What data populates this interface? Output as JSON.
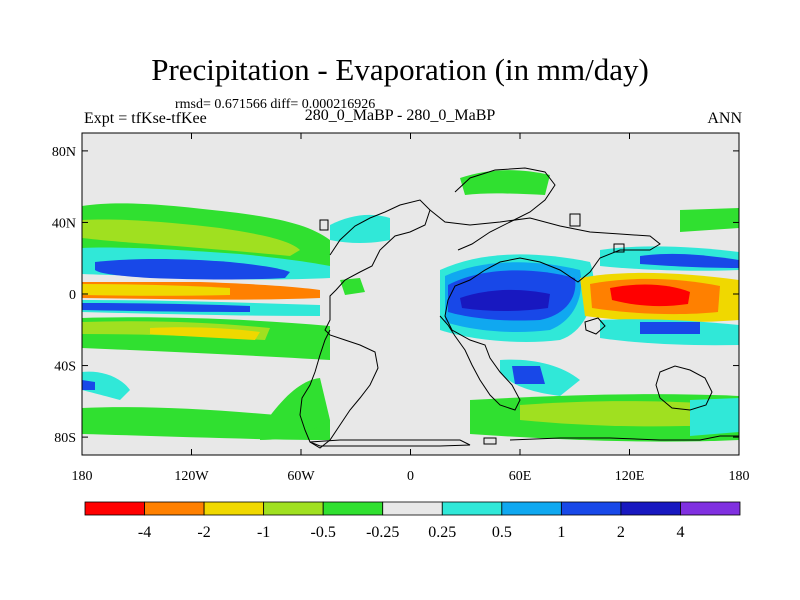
{
  "chart_data": {
    "type": "heatmap",
    "title": "Precipitation - Evaporation (in mm/day)",
    "stats": "rmsd= 0.671566 diff= 0.000216926",
    "experiment": "Expt = tfKse-tfKee",
    "case": "280_0_MaBP - 280_0_MaBP",
    "season": "ANN",
    "x_ticks": [
      "180",
      "120W",
      "60W",
      "0",
      "60E",
      "120E",
      "180"
    ],
    "y_ticks": [
      "80N",
      "40N",
      "0",
      "40S",
      "80S"
    ],
    "xlim": [
      -180,
      180
    ],
    "ylim": [
      -90,
      90
    ],
    "levels": [
      "-4",
      "-2",
      "-1",
      "-0.5",
      "-0.25",
      "0.25",
      "0.5",
      "1",
      "2",
      "4"
    ],
    "colors": [
      "#ff0000",
      "#ff8000",
      "#f0d800",
      "#a0e020",
      "#30e030",
      "#e8e8e8",
      "#30e8d8",
      "#10a8f0",
      "#1848e8",
      "#1818c0",
      "#8030e0"
    ],
    "fields": [
      {
        "region": "north-pacific band",
        "lon": [
          -180,
          -80
        ],
        "lat": [
          10,
          40
        ],
        "value": 0.5
      },
      {
        "region": "north-pacific blue",
        "lon": [
          -165,
          -100
        ],
        "lat": [
          2,
          16
        ],
        "value": 2
      },
      {
        "region": "equatorial east pacific",
        "lon": [
          -180,
          -80
        ],
        "lat": [
          -2,
          5
        ],
        "value": -1
      },
      {
        "region": "south-pacific band",
        "lon": [
          -180,
          -80
        ],
        "lat": [
          -28,
          -5
        ],
        "value": -0.5
      },
      {
        "region": "arabian / indian ocean",
        "lon": [
          20,
          100
        ],
        "lat": [
          -15,
          20
        ],
        "value": 2
      },
      {
        "region": "west pacific warm pool",
        "lon": [
          100,
          175
        ],
        "lat": [
          -10,
          5
        ],
        "value": -4
      },
      {
        "region": "southern ocean",
        "lon": [
          -180,
          180
        ],
        "lat": [
          -75,
          -55
        ],
        "value": -0.5
      }
    ]
  },
  "colors": {
    "background": "#ffffff",
    "map_fill": "#e8e8e8",
    "frame": "#000000"
  }
}
